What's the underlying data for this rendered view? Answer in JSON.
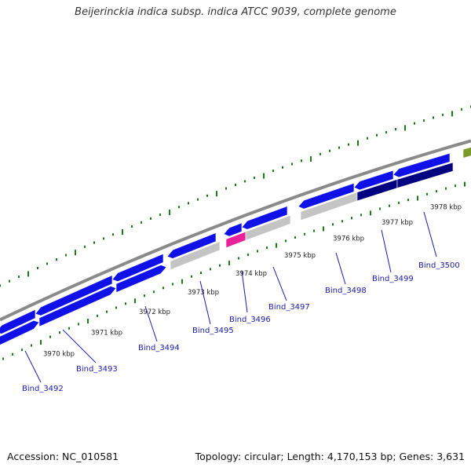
{
  "title": "Beijerinckia indica subsp. indica ATCC 9039, complete genome",
  "footer": {
    "accession": "Accession: NC_010581",
    "summary": "Topology: circular; Length: 4,170,153 bp; Genes: 3,631"
  },
  "colors": {
    "forward_gene": "#1010e8",
    "reverse_gene": "#000080",
    "rna_pink": "#e8239a",
    "pseudo_gray": "#c4c4c4",
    "olive_feature": "#7a9a2a",
    "backbone": "#8a8a8a",
    "tick": "#1a7a1a",
    "label": "#1a1aa8"
  },
  "scale_labels": [
    "3970 kbp",
    "3971 kbp",
    "3972 kbp",
    "3973 kbp",
    "3974 kbp",
    "3975 kbp",
    "3976 kbp",
    "3977 kbp",
    "3978 kbp"
  ],
  "genes": [
    {
      "id": "Bind_3492"
    },
    {
      "id": "Bind_3493"
    },
    {
      "id": "Bind_3494"
    },
    {
      "id": "Bind_3495"
    },
    {
      "id": "Bind_3496"
    },
    {
      "id": "Bind_3497"
    },
    {
      "id": "Bind_3498"
    },
    {
      "id": "Bind_3499"
    },
    {
      "id": "Bind_3500"
    }
  ]
}
